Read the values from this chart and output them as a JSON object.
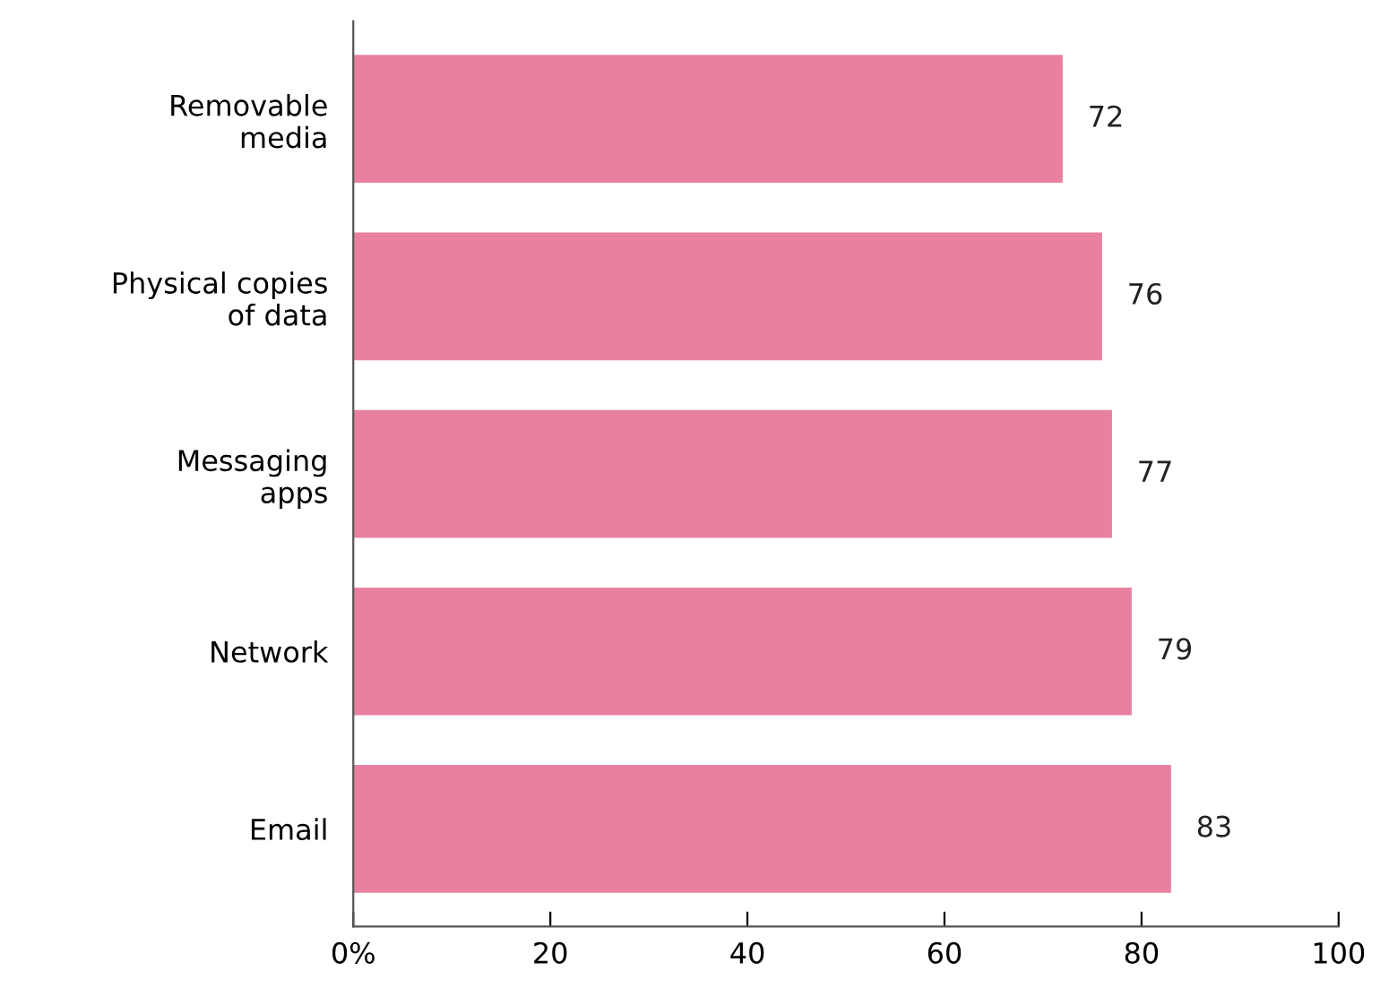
{
  "chart_data": {
    "type": "bar",
    "orientation": "horizontal",
    "categories": [
      "Removable\nmedia",
      "Physical copies\nof data",
      "Messaging\napps",
      "Network",
      "Email"
    ],
    "values": [
      72,
      76,
      77,
      79,
      83
    ],
    "color": "#e8819f",
    "xlim": [
      0,
      100
    ],
    "xticks": [
      {
        "value": 0,
        "label": "0%"
      },
      20,
      40,
      60,
      80,
      100
    ],
    "data_labels": true,
    "grid": false,
    "legend": false
  }
}
